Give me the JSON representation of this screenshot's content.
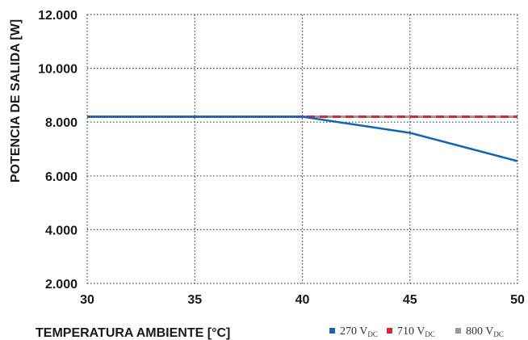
{
  "chart_data": {
    "type": "line",
    "title": "",
    "xlabel": "TEMPERATURA AMBIENTE [°C]",
    "ylabel": "POTENCIA DE SALIDA [W]",
    "xlim": [
      30,
      50
    ],
    "ylim": [
      2000,
      12000
    ],
    "x_ticks": [
      30,
      35,
      40,
      45,
      50
    ],
    "x_tick_labels": [
      "30",
      "35",
      "40",
      "45",
      "50"
    ],
    "y_ticks": [
      2000,
      4000,
      6000,
      8000,
      10000,
      12000
    ],
    "y_tick_labels": [
      "2.000",
      "4.000",
      "6.000",
      "8.000",
      "10.000",
      "12.000"
    ],
    "grid": "dotted",
    "legend_position": "bottom-right",
    "series": [
      {
        "name": "270 V",
        "name_sub": "DC",
        "color": "#1466b0",
        "style": "solid",
        "x": [
          30,
          35,
          40,
          45,
          50
        ],
        "y": [
          8200,
          8200,
          8200,
          7600,
          6550
        ]
      },
      {
        "name": "710 V",
        "name_sub": "DC",
        "color": "#d42a2e",
        "style": "dashed",
        "x": [
          30,
          35,
          40,
          45,
          50
        ],
        "y": [
          8200,
          8200,
          8200,
          8200,
          8200
        ]
      },
      {
        "name": "800 V",
        "name_sub": "DC",
        "color": "#999999",
        "style": "solid",
        "x": [
          30,
          35,
          40,
          45,
          50
        ],
        "y": [
          8200,
          8200,
          8200,
          8200,
          8200
        ]
      }
    ]
  }
}
